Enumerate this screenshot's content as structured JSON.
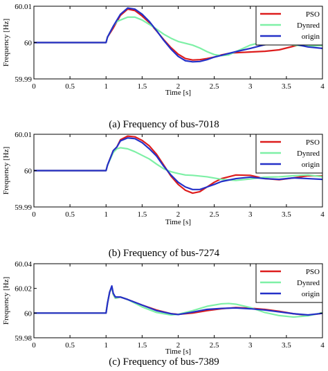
{
  "colors": {
    "PSO": "#dd1c1c",
    "Dynred": "#7ef0a6",
    "origin": "#2430c8"
  },
  "chart_data": [
    {
      "type": "line",
      "caption": "(a) Frequency of bus-7018",
      "xlabel": "Time [s]",
      "ylabel": "Frequency [Hz]",
      "xlim": [
        0,
        4
      ],
      "ylim": [
        59.99,
        60.01
      ],
      "xticks": [
        "0",
        "0.5",
        "1",
        "1.5",
        "2",
        "2.5",
        "3",
        "3.5",
        "4"
      ],
      "yticks": [
        "59.99",
        "60",
        "60.01"
      ],
      "legend_position": "top-right",
      "series": [
        {
          "name": "PSO",
          "x": [
            0,
            1,
            1.02,
            1.1,
            1.2,
            1.3,
            1.4,
            1.5,
            1.6,
            1.7,
            1.8,
            1.9,
            2,
            2.1,
            2.2,
            2.3,
            2.4,
            2.5,
            2.6,
            2.7,
            2.8,
            3,
            3.2,
            3.4,
            3.6,
            3.8,
            4
          ],
          "y": [
            60,
            60,
            60.0015,
            60.004,
            60.0075,
            60.0092,
            60.0088,
            60.0073,
            60.0055,
            60.0032,
            60.0008,
            59.9986,
            59.9968,
            59.9956,
            59.9952,
            59.9953,
            59.9956,
            59.996,
            59.9966,
            59.997,
            59.9972,
            59.9974,
            59.9976,
            59.998,
            59.999,
            60.0,
            60.0002
          ]
        },
        {
          "name": "Dynred",
          "x": [
            0,
            1,
            1.02,
            1.1,
            1.15,
            1.2,
            1.3,
            1.4,
            1.5,
            1.6,
            1.7,
            1.8,
            1.9,
            2,
            2.1,
            2.2,
            2.3,
            2.4,
            2.5,
            2.6,
            2.7,
            2.8,
            3,
            3.2,
            3.4,
            3.6,
            3.8,
            4
          ],
          "y": [
            60,
            60,
            60.0015,
            60.0045,
            60.0058,
            60.0062,
            60.007,
            60.007,
            60.0062,
            60.005,
            60.0037,
            60.0023,
            60.0012,
            60.0003,
            59.9998,
            59.9993,
            59.9985,
            59.9975,
            59.9967,
            59.9964,
            59.9966,
            59.9975,
            59.9993,
            60.0003,
            60.0002,
            59.9993,
            59.999,
            59.9992
          ]
        },
        {
          "name": "origin",
          "x": [
            0,
            1,
            1.02,
            1.1,
            1.2,
            1.3,
            1.4,
            1.5,
            1.6,
            1.7,
            1.8,
            1.9,
            2,
            2.1,
            2.2,
            2.3,
            2.4,
            2.5,
            2.6,
            2.7,
            2.8,
            3,
            3.2,
            3.4,
            3.6,
            3.8,
            4
          ],
          "y": [
            60,
            60,
            60.0015,
            60.0045,
            60.0078,
            60.0095,
            60.0092,
            60.0078,
            60.0058,
            60.0033,
            60.0006,
            59.9982,
            59.9962,
            59.995,
            59.9947,
            59.9948,
            59.9953,
            59.996,
            59.9965,
            59.997,
            59.9975,
            59.9984,
            59.9994,
            60.0,
            59.9996,
            59.9988,
            59.9984
          ]
        }
      ]
    },
    {
      "type": "line",
      "caption": "(b) Frequency of bus-7274",
      "xlabel": "Time [s]",
      "ylabel": "Frequency [Hz]",
      "xlim": [
        0,
        4
      ],
      "ylim": [
        59.99,
        60.01
      ],
      "xticks": [
        "0",
        "0.5",
        "1",
        "1.5",
        "2",
        "2.5",
        "3",
        "3.5",
        "4"
      ],
      "yticks": [
        "59.99",
        "60",
        "60.01"
      ],
      "legend_position": "top-right",
      "series": [
        {
          "name": "PSO",
          "x": [
            0,
            1,
            1.02,
            1.1,
            1.15,
            1.2,
            1.3,
            1.4,
            1.5,
            1.6,
            1.7,
            1.8,
            1.9,
            2,
            2.1,
            2.2,
            2.3,
            2.4,
            2.5,
            2.6,
            2.8,
            3,
            3.2,
            3.4,
            3.6,
            3.8,
            4
          ],
          "y": [
            60,
            60,
            60.0015,
            60.0055,
            60.0065,
            60.0085,
            60.0095,
            60.0093,
            60.0083,
            60.0068,
            60.0045,
            60.0015,
            59.9985,
            59.9962,
            59.9946,
            59.9938,
            59.9942,
            59.9955,
            59.9968,
            59.9978,
            59.9988,
            59.9987,
            59.9978,
            59.9975,
            59.998,
            59.9986,
            59.9985
          ]
        },
        {
          "name": "Dynred",
          "x": [
            0,
            1,
            1.02,
            1.1,
            1.15,
            1.2,
            1.3,
            1.4,
            1.5,
            1.6,
            1.7,
            1.8,
            1.9,
            2,
            2.1,
            2.2,
            2.4,
            2.6,
            2.8,
            3,
            3.2,
            3.4,
            3.6,
            3.8,
            4
          ],
          "y": [
            60,
            60,
            60.0015,
            60.005,
            60.006,
            60.0063,
            60.006,
            60.0052,
            60.0042,
            60.0032,
            60.0018,
            60.0005,
            59.9997,
            59.9992,
            59.9988,
            59.9987,
            59.9983,
            59.9976,
            59.9973,
            59.9977,
            59.9982,
            59.9983,
            59.9986,
            59.9988,
            59.9983
          ]
        },
        {
          "name": "origin",
          "x": [
            0,
            1,
            1.02,
            1.1,
            1.15,
            1.2,
            1.3,
            1.4,
            1.5,
            1.6,
            1.7,
            1.8,
            1.9,
            2,
            2.1,
            2.2,
            2.3,
            2.4,
            2.5,
            2.6,
            2.8,
            3,
            3.2,
            3.4,
            3.6,
            3.8,
            4
          ],
          "y": [
            60,
            60,
            60.0015,
            60.0055,
            60.0065,
            60.0082,
            60.009,
            60.0088,
            60.0077,
            60.006,
            60.004,
            60.0012,
            59.9988,
            59.9968,
            59.9955,
            59.9948,
            59.9948,
            59.9955,
            59.9962,
            59.997,
            59.9978,
            59.9982,
            59.9978,
            59.9976,
            59.998,
            59.9978,
            59.9976
          ]
        }
      ]
    },
    {
      "type": "line",
      "caption": "(c) Frequency of bus-7389",
      "xlabel": "Time [s]",
      "ylabel": "Frequency [Hz]",
      "xlim": [
        0,
        4
      ],
      "ylim": [
        59.98,
        60.04
      ],
      "xticks": [
        "0",
        "0.5",
        "1",
        "1.5",
        "2",
        "2.5",
        "3",
        "3.5",
        "4"
      ],
      "yticks": [
        "59.98",
        "60",
        "60.02",
        "60.04"
      ],
      "legend_position": "top-right",
      "series": [
        {
          "name": "PSO",
          "x": [
            0,
            1,
            1.02,
            1.05,
            1.08,
            1.1,
            1.13,
            1.2,
            1.3,
            1.5,
            1.7,
            1.9,
            2,
            2.2,
            2.4,
            2.6,
            2.8,
            3,
            3.2,
            3.4,
            3.6,
            3.8,
            4
          ],
          "y": [
            60,
            60,
            60.008,
            60.017,
            60.021,
            60.015,
            60.012,
            60.013,
            60.011,
            60.0065,
            60.0025,
            59.9995,
            59.999,
            60.0,
            60.002,
            60.0035,
            60.0045,
            60.004,
            60.003,
            60.0015,
            59.9995,
            59.9982,
            59.9998
          ]
        },
        {
          "name": "Dynred",
          "x": [
            0,
            1,
            1.02,
            1.05,
            1.08,
            1.1,
            1.13,
            1.2,
            1.3,
            1.5,
            1.7,
            1.9,
            2,
            2.2,
            2.4,
            2.6,
            2.7,
            2.8,
            3,
            3.2,
            3.4,
            3.6,
            3.8,
            4
          ],
          "y": [
            60,
            60,
            60.008,
            60.017,
            60.021,
            60.015,
            60.012,
            60.013,
            60.011,
            60.005,
            60.0005,
            59.9985,
            59.999,
            60.002,
            60.0055,
            60.0075,
            60.0078,
            60.0072,
            60.0045,
            60.0005,
            59.998,
            59.9968,
            59.9978,
            60.0003
          ]
        },
        {
          "name": "origin",
          "x": [
            0,
            1,
            1.02,
            1.05,
            1.08,
            1.1,
            1.13,
            1.2,
            1.3,
            1.5,
            1.7,
            1.9,
            2,
            2.2,
            2.4,
            2.6,
            2.8,
            3,
            3.2,
            3.4,
            3.6,
            3.8,
            4
          ],
          "y": [
            60,
            60,
            60.008,
            60.017,
            60.022,
            60.016,
            60.013,
            60.013,
            60.011,
            60.0065,
            60.002,
            59.9995,
            59.9988,
            60.0008,
            60.003,
            60.0038,
            60.0042,
            60.0035,
            60.0025,
            60.001,
            59.9995,
            59.9985,
            59.9998
          ]
        }
      ]
    }
  ]
}
